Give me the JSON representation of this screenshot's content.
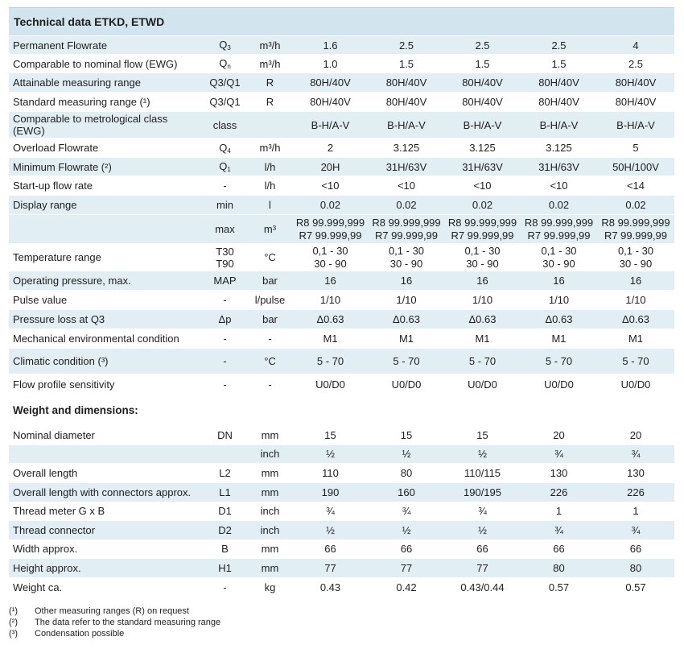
{
  "title": "Technical data ETKD, ETWD",
  "section2_title": "Weight and dimensions:",
  "rows": [
    {
      "label": "Permanent Flowrate",
      "sym": "Q",
      "sub": "3",
      "unit": "m³/h",
      "v": [
        "1.6",
        "2.5",
        "2.5",
        "2.5",
        "4"
      ]
    },
    {
      "label": "Comparable to nominal flow (EWG)",
      "sym": "Q",
      "sub": "n",
      "unit": "m³/h",
      "v": [
        "1.0",
        "1.5",
        "1.5",
        "1.5",
        "2.5"
      ]
    },
    {
      "label": "Attainable measuring range",
      "sym": "Q3/Q1",
      "unit": "R",
      "v": [
        "80H/40V",
        "80H/40V",
        "80H/40V",
        "80H/40V",
        "80H/40V"
      ]
    },
    {
      "label": "Standard measuring range (¹)",
      "sym": "Q3/Q1",
      "unit": "R",
      "v": [
        "80H/40V",
        "80H/40V",
        "80H/40V",
        "80H/40V",
        "80H/40V"
      ]
    },
    {
      "label": "Comparable to metrological class (EWG)",
      "sym": "class",
      "unit": "",
      "v": [
        "B-H/A-V",
        "B-H/A-V",
        "B-H/A-V",
        "B-H/A-V",
        "B-H/A-V"
      ]
    },
    {
      "label": "Overload Flowrate",
      "sym": "Q",
      "sub": "4",
      "unit": "m³/h",
      "v": [
        "2",
        "3.125",
        "3.125",
        "3.125",
        "5"
      ]
    },
    {
      "label": "Minimum Flowrate (²)",
      "sym": "Q",
      "sub": "1",
      "unit": "l/h",
      "v": [
        "20H",
        "31H/63V",
        "31H/63V",
        "31H/63V",
        "50H/100V"
      ]
    },
    {
      "label": "Start-up flow rate",
      "sym": "-",
      "unit": "l/h",
      "v": [
        "<10",
        "<10",
        "<10",
        "<10",
        "<14"
      ]
    },
    {
      "label": "Display range",
      "sym": "min",
      "unit": "l",
      "v": [
        "0.02",
        "0.02",
        "0.02",
        "0.02",
        "0.02"
      ]
    },
    {
      "label": "",
      "sym": "max",
      "unit": "m³",
      "v": [
        "R8 99.999,999",
        "R8 99.999,999",
        "R8 99.999,999",
        "R8 99.999,999",
        "R8 99.999,999"
      ],
      "v2": [
        "R7 99.999,99",
        "R7 99.999,99",
        "R7 99.999,99",
        "R7 99.999,99",
        "R7 99.999,99"
      ]
    },
    {
      "label": "Temperature range",
      "sym": "T30",
      "sym2": "T90",
      "unit": "°C",
      "v": [
        "0,1 - 30",
        "0,1 - 30",
        "0,1 - 30",
        "0,1 - 30",
        "0,1 - 30"
      ],
      "v2": [
        "30 - 90",
        "30 - 90",
        "30 - 90",
        "30 - 90",
        "30 - 90"
      ]
    },
    {
      "label": "Operating pressure, max.",
      "sym": "MAP",
      "unit": "bar",
      "v": [
        "16",
        "16",
        "16",
        "16",
        "16"
      ]
    },
    {
      "label": "Pulse value",
      "sym": "-",
      "unit": "l/pulse",
      "v": [
        "1/10",
        "1/10",
        "1/10",
        "1/10",
        "1/10"
      ]
    },
    {
      "label": "Pressure loss at Q3",
      "sym": "Δp",
      "unit": "bar",
      "v": [
        "Δ0.63",
        "Δ0.63",
        "Δ0.63",
        "Δ0.63",
        "Δ0.63"
      ]
    },
    {
      "label": "Mechanical environmental condition",
      "sym": "-",
      "unit": "-",
      "v": [
        "M1",
        "M1",
        "M1",
        "M1",
        "M1"
      ]
    },
    {
      "label": "Climatic condition (³)",
      "sym": "-",
      "unit": "°C",
      "v": [
        "5 - 70",
        "5 - 70",
        "5 - 70",
        "5 - 70",
        "5 - 70"
      ]
    },
    {
      "label": "Flow profile sensitivity",
      "sym": "-",
      "unit": "-",
      "v": [
        "U0/D0",
        "U0/D0",
        "U0/D0",
        "U0/D0",
        "U0/D0"
      ]
    }
  ],
  "rows2": [
    {
      "label": "Nominal diameter",
      "sym": "DN",
      "unit": "mm",
      "v": [
        "15",
        "15",
        "15",
        "20",
        "20"
      ]
    },
    {
      "label": "",
      "sym": "",
      "unit": "inch",
      "v": [
        "½",
        "½",
        "½",
        "¾",
        "¾"
      ]
    },
    {
      "label": "Overall length",
      "sym": "L2",
      "unit": "mm",
      "v": [
        "110",
        "80",
        "110/115",
        "130",
        "130"
      ]
    },
    {
      "label": "Overall length with connectors approx.",
      "sym": "L1",
      "unit": "mm",
      "v": [
        "190",
        "160",
        "190/195",
        "226",
        "226"
      ]
    },
    {
      "label": "Thread meter G x B",
      "sym": "D1",
      "unit": "inch",
      "v": [
        "¾",
        "¾",
        "¾",
        "1",
        "1"
      ]
    },
    {
      "label": "Thread connector",
      "sym": "D2",
      "unit": "inch",
      "v": [
        "½",
        "½",
        "½",
        "¾",
        "¾"
      ]
    },
    {
      "label": "Width approx.",
      "sym": "B",
      "unit": "mm",
      "v": [
        "66",
        "66",
        "66",
        "66",
        "66"
      ]
    },
    {
      "label": "Height approx.",
      "sym": "H1",
      "unit": "mm",
      "v": [
        "77",
        "77",
        "77",
        "80",
        "80"
      ]
    },
    {
      "label": "Weight ca.",
      "sym": "-",
      "unit": "kg",
      "v": [
        "0.43",
        "0.42",
        "0.43/0.44",
        "0.57",
        "0.57"
      ]
    }
  ],
  "notes": [
    {
      "mark": "(¹)",
      "text": "Other measuring ranges (R) on request"
    },
    {
      "mark": "(²)",
      "text": "The data refer to the standard measuring range"
    },
    {
      "mark": "(³)",
      "text": "Condensation possible"
    }
  ]
}
